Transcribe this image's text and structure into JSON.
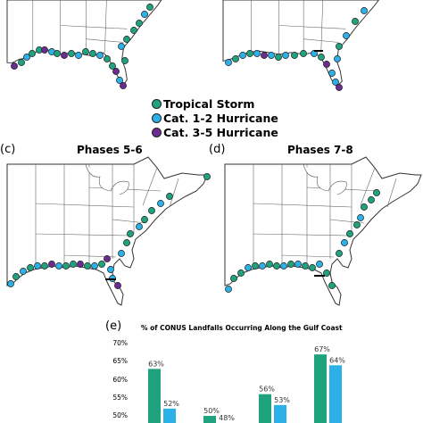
{
  "legend": {
    "items": [
      {
        "label": "Tropical Storm",
        "color": "#1fa37f"
      },
      {
        "label": "Cat. 1-2 Hurricane",
        "color": "#2bb0e8"
      },
      {
        "label": "Cat. 3-5 Hurricane",
        "color": "#6a2c91"
      }
    ]
  },
  "panels": {
    "c": {
      "label": "(c)",
      "title": "Phases 5-6"
    },
    "d": {
      "label": "(d)",
      "title": "Phases 7-8"
    },
    "e": {
      "label": "(e)"
    }
  },
  "chart_data": {
    "type": "bar",
    "title": "% of CONUS Landfalls Occurring Along the Gulf Coast",
    "ylim": [
      50,
      70
    ],
    "yticks": [
      "70%",
      "65%",
      "60%",
      "55%",
      "50%"
    ],
    "series_colors": [
      "#1fa37f",
      "#2bb0e8"
    ],
    "groups": [
      {
        "values": [
          63,
          52
        ],
        "labels": [
          "63%",
          "52%"
        ]
      },
      {
        "values": [
          50,
          48
        ],
        "labels": [
          "50%",
          "48%"
        ]
      },
      {
        "values": [
          56,
          53
        ],
        "labels": [
          "56%",
          "53%"
        ]
      },
      {
        "values": [
          67,
          64
        ],
        "labels": [
          "67%",
          "64%"
        ]
      }
    ]
  }
}
